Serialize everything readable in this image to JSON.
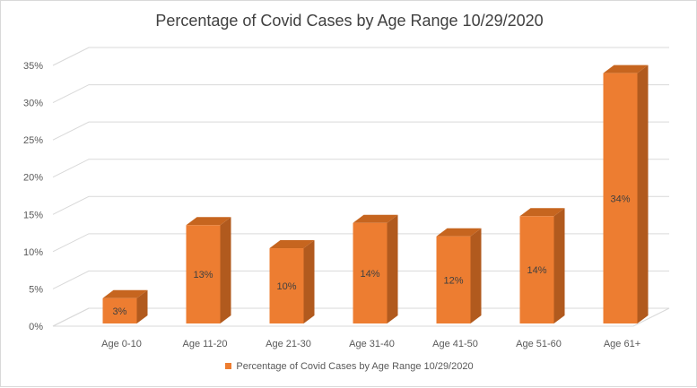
{
  "chart_data": {
    "type": "bar",
    "title": "Percentage of Covid Cases by Age Range 10/29/2020",
    "categories": [
      "Age 0-10",
      "Age 11-20",
      "Age 21-30",
      "Age 31-40",
      "Age 41-50",
      "Age 51-60",
      "Age 61+"
    ],
    "series": [
      {
        "name": "Percentage of Covid Cases by Age Range 10/29/2020",
        "values": [
          3.4,
          13.2,
          10.1,
          13.5,
          11.7,
          14.4,
          33.6
        ],
        "labels": [
          "3%",
          "13%",
          "10%",
          "14%",
          "12%",
          "14%",
          "34%"
        ],
        "color": "#ed7d31"
      }
    ],
    "y_ticks": [
      "0%",
      "5%",
      "10%",
      "15%",
      "20%",
      "25%",
      "30%",
      "35%"
    ],
    "ylim": [
      0,
      35
    ],
    "grid": true,
    "legend_position": "bottom",
    "style": "3d-column"
  }
}
